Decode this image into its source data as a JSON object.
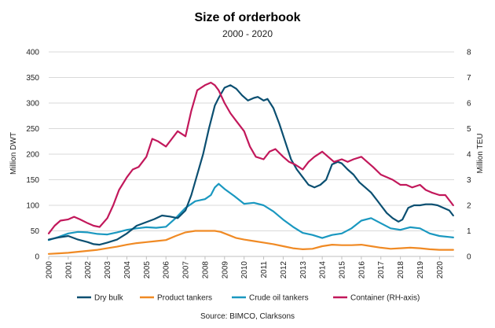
{
  "chart_data": {
    "type": "line",
    "title": "Size of orderbook",
    "subtitle": "2000 - 2020",
    "xlabel": "",
    "ylabel": "Million DWT",
    "y2label": "Million TEU",
    "x_ticks": [
      "2000",
      "2001",
      "2002",
      "2003",
      "2004",
      "2005",
      "2006",
      "2007",
      "2008",
      "2009",
      "2010",
      "2011",
      "2012",
      "2013",
      "2014",
      "2015",
      "2016",
      "2017",
      "2018",
      "2019",
      "2020"
    ],
    "xlim": [
      2000.0,
      2020.75
    ],
    "ylim": [
      0,
      400
    ],
    "y2lim": [
      0,
      8
    ],
    "y_ticks": [
      "0",
      "50",
      "100",
      "150",
      "200",
      "250",
      "300",
      "350",
      "400"
    ],
    "y2_ticks": [
      "0",
      "1",
      "2",
      "3",
      "4",
      "5",
      "6",
      "7",
      "8"
    ],
    "grid": true,
    "legend_position": "bottom",
    "series": [
      {
        "name": "Dry bulk",
        "axis": "left",
        "color": "#0b4f71",
        "x": [
          2000.0,
          2000.5,
          2001.0,
          2001.5,
          2002.0,
          2002.3,
          2002.6,
          2003.0,
          2003.5,
          2004.0,
          2004.5,
          2005.0,
          2005.4,
          2005.8,
          2006.2,
          2006.6,
          2007.0,
          2007.3,
          2007.6,
          2007.9,
          2008.2,
          2008.5,
          2008.7,
          2009.0,
          2009.3,
          2009.6,
          2009.9,
          2010.2,
          2010.5,
          2010.7,
          2011.0,
          2011.2,
          2011.5,
          2011.8,
          2012.1,
          2012.4,
          2012.7,
          2013.0,
          2013.3,
          2013.6,
          2013.9,
          2014.2,
          2014.5,
          2014.8,
          2015.0,
          2015.3,
          2015.6,
          2015.9,
          2016.2,
          2016.5,
          2016.8,
          2017.0,
          2017.3,
          2017.6,
          2017.9,
          2018.1,
          2018.4,
          2018.7,
          2019.0,
          2019.3,
          2019.6,
          2019.9,
          2020.2,
          2020.5,
          2020.7
        ],
        "values": [
          33,
          37,
          40,
          33,
          28,
          24,
          23,
          27,
          33,
          45,
          60,
          67,
          73,
          80,
          78,
          75,
          90,
          120,
          160,
          200,
          250,
          295,
          310,
          330,
          335,
          328,
          315,
          305,
          310,
          312,
          305,
          308,
          290,
          260,
          225,
          190,
          170,
          155,
          140,
          135,
          140,
          150,
          180,
          185,
          182,
          170,
          160,
          145,
          135,
          125,
          110,
          100,
          85,
          75,
          68,
          72,
          95,
          100,
          100,
          102,
          102,
          100,
          95,
          90,
          80
        ]
      },
      {
        "name": "Product tankers",
        "axis": "left",
        "color": "#f08a24",
        "x": [
          2000.0,
          2000.5,
          2001.0,
          2001.5,
          2002.0,
          2002.5,
          2003.0,
          2003.5,
          2004.0,
          2004.5,
          2005.0,
          2005.5,
          2006.0,
          2006.5,
          2007.0,
          2007.5,
          2008.0,
          2008.5,
          2008.8,
          2009.2,
          2009.6,
          2010.0,
          2010.5,
          2011.0,
          2011.5,
          2012.0,
          2012.5,
          2013.0,
          2013.5,
          2014.0,
          2014.5,
          2015.0,
          2015.5,
          2016.0,
          2016.5,
          2017.0,
          2017.5,
          2018.0,
          2018.5,
          2019.0,
          2019.5,
          2020.0,
          2020.5,
          2020.7
        ],
        "values": [
          5,
          6,
          7,
          9,
          11,
          13,
          16,
          19,
          23,
          26,
          28,
          30,
          32,
          40,
          47,
          50,
          50,
          50,
          48,
          42,
          36,
          33,
          30,
          27,
          24,
          20,
          16,
          14,
          15,
          20,
          23,
          22,
          22,
          23,
          20,
          17,
          15,
          16,
          17,
          16,
          14,
          13,
          13,
          13
        ]
      },
      {
        "name": "Crude oil tankers",
        "axis": "left",
        "color": "#1a98c0",
        "x": [
          2000.0,
          2000.5,
          2001.0,
          2001.5,
          2002.0,
          2002.5,
          2003.0,
          2003.5,
          2004.0,
          2004.5,
          2005.0,
          2005.5,
          2006.0,
          2006.5,
          2007.0,
          2007.5,
          2008.0,
          2008.3,
          2008.5,
          2008.7,
          2009.0,
          2009.5,
          2010.0,
          2010.5,
          2011.0,
          2011.5,
          2012.0,
          2012.5,
          2013.0,
          2013.5,
          2014.0,
          2014.5,
          2015.0,
          2015.5,
          2016.0,
          2016.5,
          2017.0,
          2017.5,
          2018.0,
          2018.5,
          2019.0,
          2019.5,
          2020.0,
          2020.5,
          2020.7
        ],
        "values": [
          32,
          38,
          45,
          48,
          47,
          44,
          43,
          47,
          52,
          55,
          57,
          56,
          58,
          75,
          95,
          108,
          112,
          120,
          135,
          142,
          132,
          118,
          103,
          105,
          100,
          88,
          72,
          58,
          46,
          42,
          36,
          42,
          45,
          55,
          70,
          75,
          65,
          55,
          52,
          57,
          55,
          45,
          40,
          38,
          37
        ]
      },
      {
        "name": "Container (RH-axis)",
        "axis": "right",
        "color": "#c2185b",
        "x": [
          2000.0,
          2000.3,
          2000.6,
          2001.0,
          2001.3,
          2001.6,
          2002.0,
          2002.3,
          2002.6,
          2003.0,
          2003.3,
          2003.6,
          2004.0,
          2004.3,
          2004.6,
          2005.0,
          2005.3,
          2005.6,
          2006.0,
          2006.3,
          2006.6,
          2007.0,
          2007.3,
          2007.6,
          2008.0,
          2008.3,
          2008.5,
          2008.7,
          2009.0,
          2009.3,
          2009.6,
          2010.0,
          2010.3,
          2010.6,
          2011.0,
          2011.3,
          2011.6,
          2012.0,
          2012.3,
          2012.6,
          2013.0,
          2013.3,
          2013.6,
          2014.0,
          2014.3,
          2014.6,
          2015.0,
          2015.3,
          2015.6,
          2016.0,
          2016.3,
          2016.6,
          2017.0,
          2017.3,
          2017.6,
          2018.0,
          2018.3,
          2018.6,
          2019.0,
          2019.3,
          2019.6,
          2020.0,
          2020.3,
          2020.5,
          2020.7
        ],
        "values": [
          0.9,
          1.2,
          1.4,
          1.45,
          1.55,
          1.45,
          1.3,
          1.2,
          1.15,
          1.5,
          2.0,
          2.6,
          3.1,
          3.4,
          3.5,
          3.9,
          4.6,
          4.5,
          4.3,
          4.6,
          4.9,
          4.7,
          5.7,
          6.5,
          6.7,
          6.8,
          6.7,
          6.5,
          6.0,
          5.6,
          5.3,
          4.9,
          4.3,
          3.9,
          3.8,
          4.1,
          4.2,
          3.9,
          3.7,
          3.6,
          3.4,
          3.7,
          3.9,
          4.1,
          3.9,
          3.7,
          3.8,
          3.7,
          3.8,
          3.9,
          3.7,
          3.5,
          3.2,
          3.1,
          3.0,
          2.8,
          2.8,
          2.7,
          2.8,
          2.6,
          2.5,
          2.4,
          2.4,
          2.2,
          2.0
        ]
      }
    ],
    "source": "Source: BIMCO, Clarksons"
  }
}
